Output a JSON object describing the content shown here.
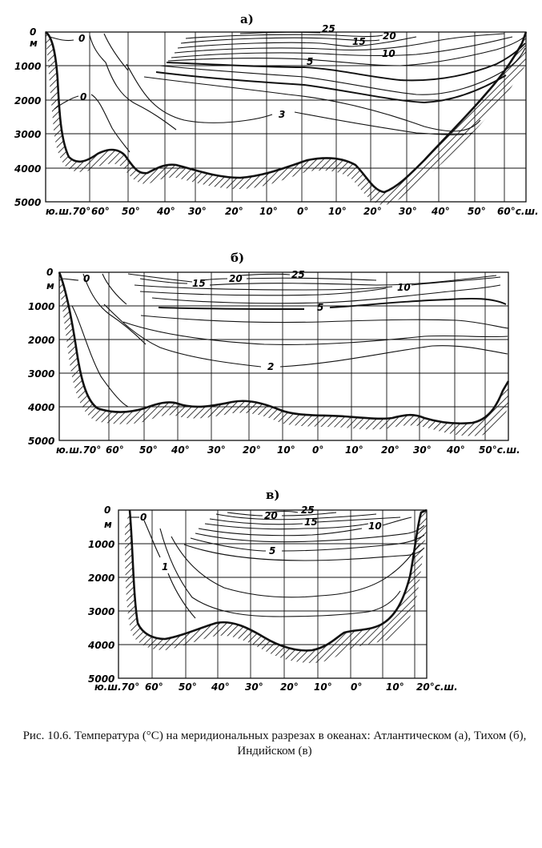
{
  "panels": [
    {
      "id": "a",
      "title": "а)",
      "depth_labels": [
        "0",
        "м",
        "1000",
        "2000",
        "3000",
        "4000",
        "5000"
      ],
      "lat_labels": [
        "ю.ш.70°",
        "60°",
        "50°",
        "40°",
        "30°",
        "20°",
        "10°",
        "0°",
        "10°",
        "20°",
        "30°",
        "40°",
        "50°",
        "60°с.ш."
      ],
      "isotherm_labels": [
        "25",
        "20",
        "15",
        "10",
        "5",
        "3",
        "0",
        "0"
      ]
    },
    {
      "id": "b",
      "title": "б)",
      "depth_labels": [
        "0",
        "м",
        "1000",
        "2000",
        "3000",
        "4000",
        "5000"
      ],
      "lat_labels": [
        "ю.ш.70°",
        "60°",
        "50°",
        "40°",
        "30°",
        "20°",
        "10°",
        "0°",
        "10°",
        "20°",
        "30°",
        "40°",
        "50°с.ш."
      ],
      "isotherm_labels": [
        "25",
        "20",
        "15",
        "10",
        "5",
        "2",
        "0"
      ]
    },
    {
      "id": "v",
      "title": "в)",
      "depth_labels": [
        "0",
        "м",
        "1000",
        "2000",
        "3000",
        "4000",
        "5000"
      ],
      "lat_labels": [
        "ю.ш.70°",
        "60°",
        "50°",
        "40°",
        "30°",
        "20°",
        "10°",
        "0°",
        "10°",
        "20°с.ш."
      ],
      "isotherm_labels": [
        "25",
        "20",
        "15",
        "10",
        "5",
        "1",
        "0"
      ]
    }
  ],
  "caption": "Рис. 10.6. Температура (°C) на меридиональных разрезах в океанах: Атлантическом (а), Тихом (б), Индийском (в)"
}
